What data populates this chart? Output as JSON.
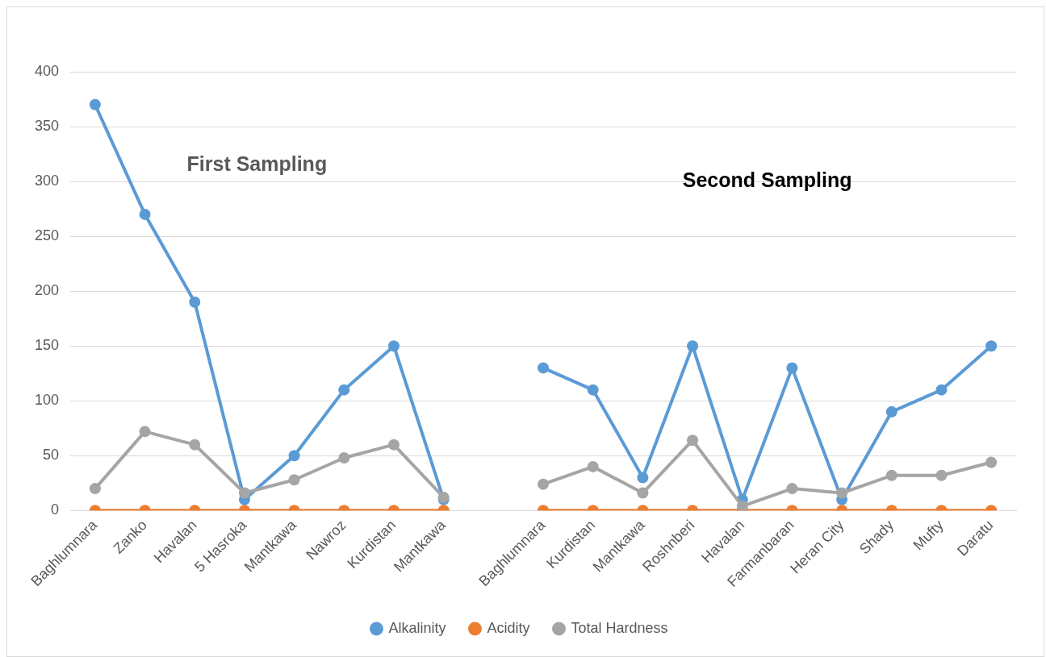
{
  "chart_data": {
    "type": "line",
    "categories": [
      "Baghlumnara",
      "Zanko",
      "Havalan",
      "5 Hasroka",
      "Mantkawa",
      "Nawroz",
      "Kurdistan",
      "Mantkawa",
      null,
      "Baghlumnara",
      "Kurdistan",
      "Mantkawa",
      "Roshnberi",
      "Havalan",
      "Farmanbaran",
      "Heran City",
      "Shady",
      "Mufty",
      "Daratu"
    ],
    "series": [
      {
        "name": "Alkalinity",
        "color": "#5b9bd5",
        "values": [
          370,
          270,
          190,
          10,
          50,
          110,
          150,
          10,
          null,
          130,
          110,
          30,
          150,
          10,
          130,
          10,
          90,
          110,
          150
        ]
      },
      {
        "name": "Acidity",
        "color": "#ed7d31",
        "values": [
          0,
          0,
          0,
          0,
          0,
          0,
          0,
          0,
          null,
          0,
          0,
          0,
          0,
          0,
          0,
          0,
          0,
          0,
          0
        ]
      },
      {
        "name": "Total Hardness",
        "color": "#a5a5a5",
        "values": [
          20,
          72,
          60,
          16,
          28,
          48,
          60,
          12,
          null,
          24,
          40,
          16,
          64,
          4,
          20,
          16,
          32,
          32,
          44
        ]
      }
    ],
    "annotations": [
      "First Sampling",
      "Second Sampling"
    ],
    "ylim": [
      0,
      400
    ],
    "yticks": [
      0,
      50,
      100,
      150,
      200,
      250,
      300,
      350,
      400
    ],
    "grid": "y",
    "legend": "bottom",
    "marker": "circle",
    "line_style": "solid"
  }
}
